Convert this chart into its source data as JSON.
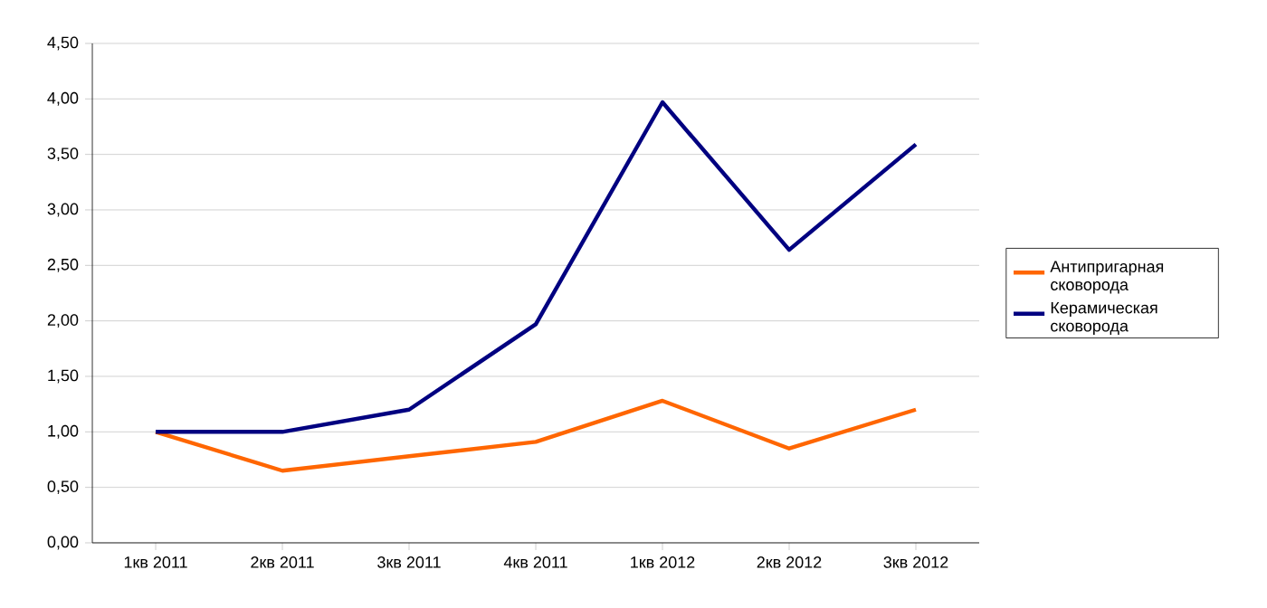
{
  "chart_data": {
    "type": "line",
    "categories": [
      "1кв 2011",
      "2кв 2011",
      "3кв 2011",
      "4кв 2011",
      "1кв 2012",
      "2кв 2012",
      "3кв 2012"
    ],
    "series": [
      {
        "name": "Антипригарная сковорода",
        "color": "#ff6600",
        "values": [
          1.0,
          0.65,
          0.78,
          0.91,
          1.28,
          0.85,
          1.2
        ]
      },
      {
        "name": "Керамическая сковорода",
        "color": "#000080",
        "values": [
          1.0,
          1.0,
          1.2,
          1.97,
          3.97,
          2.64,
          3.59
        ]
      }
    ],
    "ylim": [
      0,
      4.5
    ],
    "yticks": [
      {
        "value": 0,
        "label": "0,00"
      },
      {
        "value": 0.5,
        "label": "0,50"
      },
      {
        "value": 1,
        "label": "1,00"
      },
      {
        "value": 1.5,
        "label": "1,50"
      },
      {
        "value": 2,
        "label": "2,00"
      },
      {
        "value": 2.5,
        "label": "2,50"
      },
      {
        "value": 3,
        "label": "3,00"
      },
      {
        "value": 3.5,
        "label": "3,50"
      },
      {
        "value": 4,
        "label": "4,00"
      },
      {
        "value": 4.5,
        "label": "4,50"
      }
    ],
    "grid": "y",
    "legend": "right",
    "marker": "none",
    "line_style": "solid"
  }
}
